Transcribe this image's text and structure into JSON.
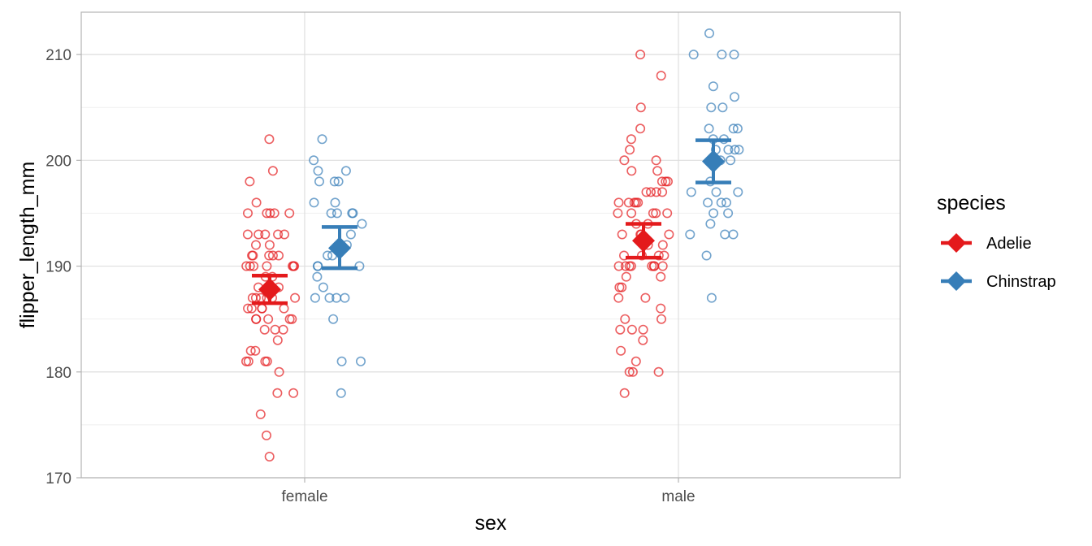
{
  "chart_data": {
    "type": "scatter",
    "xlabel": "sex",
    "ylabel": "flipper_length_mm",
    "categories": [
      "female",
      "male"
    ],
    "ylim": [
      170,
      214
    ],
    "y_ticks": [
      170,
      180,
      190,
      200,
      210
    ],
    "grid": true,
    "legend": {
      "title": "species",
      "position": "right"
    },
    "series": [
      {
        "name": "Adelie",
        "color": "#E41A1C",
        "summary": [
          {
            "category": "female",
            "mean": 187.8,
            "lower": 186.5,
            "upper": 189.1
          },
          {
            "category": "male",
            "mean": 192.4,
            "lower": 190.8,
            "upper": 194.0
          }
        ],
        "points": {
          "female": [
            202,
            199,
            198,
            196,
            195,
            195,
            195,
            195,
            195,
            193,
            193,
            193,
            193,
            193,
            192,
            192,
            191,
            191,
            191,
            191,
            191,
            190,
            190,
            190,
            190,
            190,
            190,
            190,
            189,
            189,
            188,
            188,
            187,
            187,
            187,
            187,
            187,
            187,
            186,
            186,
            186,
            186,
            186,
            185,
            185,
            185,
            185,
            185,
            184,
            184,
            184,
            183,
            182,
            182,
            181,
            181,
            181,
            181,
            180,
            178,
            178,
            176,
            174,
            172
          ],
          "male": [
            210,
            208,
            205,
            203,
            202,
            201,
            200,
            200,
            199,
            199,
            198,
            198,
            198,
            197,
            197,
            197,
            197,
            196,
            196,
            196,
            196,
            196,
            195,
            195,
            195,
            195,
            195,
            194,
            194,
            193,
            193,
            193,
            193,
            192,
            192,
            191,
            191,
            191,
            191,
            190,
            190,
            190,
            190,
            190,
            190,
            190,
            190,
            189,
            189,
            188,
            188,
            187,
            187,
            186,
            185,
            185,
            184,
            184,
            184,
            183,
            182,
            181,
            180,
            180,
            180,
            178
          ]
        }
      },
      {
        "name": "Chinstrap",
        "color": "#377EB8",
        "summary": [
          {
            "category": "female",
            "mean": 191.7,
            "lower": 189.8,
            "upper": 193.7
          },
          {
            "category": "male",
            "mean": 199.9,
            "lower": 197.9,
            "upper": 201.9
          }
        ],
        "points": {
          "female": [
            202,
            200,
            199,
            199,
            198,
            198,
            198,
            196,
            196,
            195,
            195,
            195,
            195,
            194,
            193,
            192,
            191,
            191,
            190,
            190,
            190,
            189,
            188,
            187,
            187,
            187,
            187,
            185,
            181,
            181,
            178
          ],
          "male": [
            212,
            210,
            210,
            210,
            207,
            206,
            205,
            205,
            203,
            203,
            203,
            202,
            202,
            201,
            201,
            201,
            201,
            200,
            200,
            198,
            197,
            197,
            197,
            196,
            196,
            196,
            195,
            195,
            194,
            193,
            193,
            193,
            191,
            187
          ]
        }
      }
    ]
  }
}
